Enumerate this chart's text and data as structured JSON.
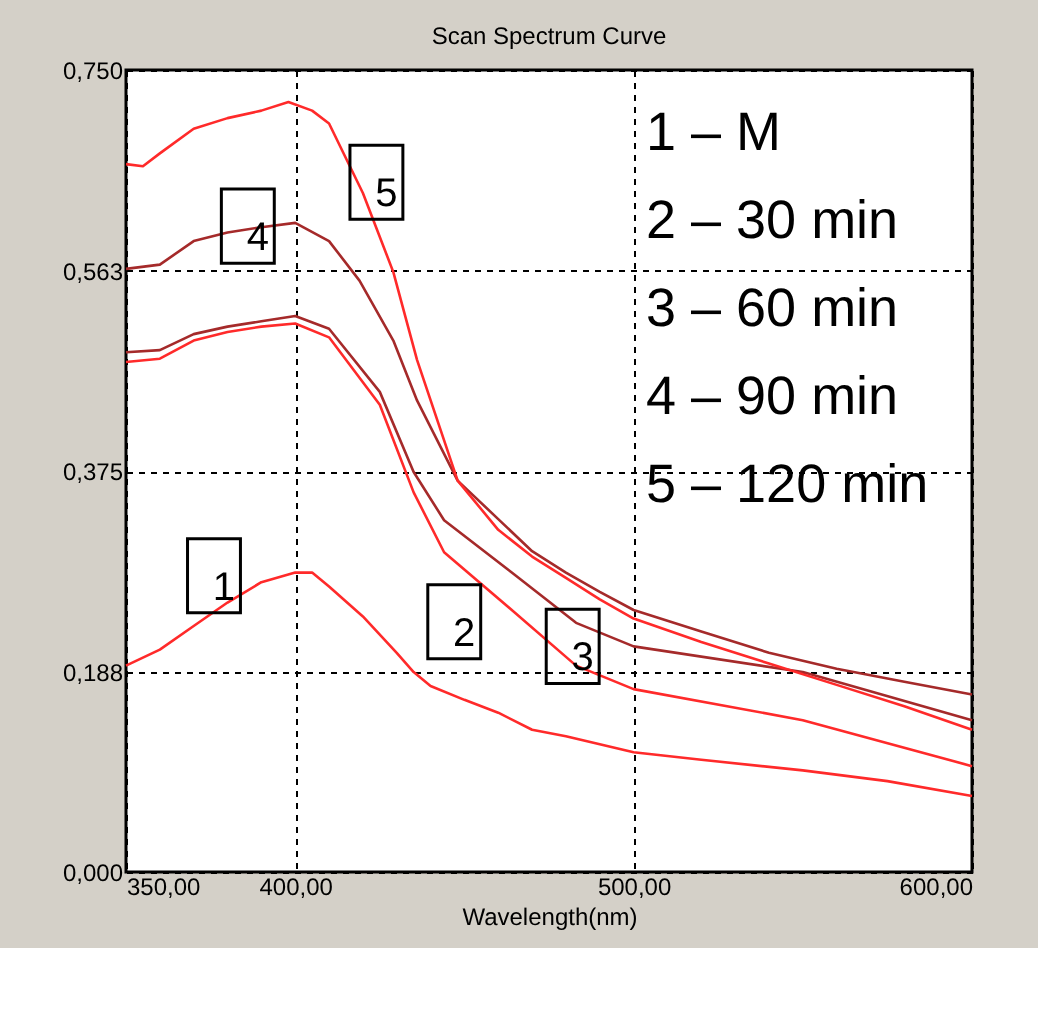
{
  "chart_data": {
    "type": "line",
    "title": "Scan Spectrum Curve",
    "xlabel": "Wavelength(nm)",
    "xlim": [
      350,
      600
    ],
    "xticks": [
      {
        "value": 350,
        "label": "350,00"
      },
      {
        "value": 400,
        "label": "400,00"
      },
      {
        "value": 500,
        "label": "500,00"
      },
      {
        "value": 600,
        "label": "600,00"
      }
    ],
    "ylim": [
      0,
      0.75
    ],
    "yticks": [
      {
        "value": 0,
        "label": "0,000"
      },
      {
        "value": 0.1875,
        "label": "0,188"
      },
      {
        "value": 0.375,
        "label": "0,375"
      },
      {
        "value": 0.5625,
        "label": "0,563"
      },
      {
        "value": 0.75,
        "label": "0,750"
      }
    ],
    "grid": true,
    "legend": false,
    "marker": "none",
    "line_style": "solid",
    "series": [
      {
        "color": "#ff2a2a",
        "x": [
          350,
          360,
          370,
          380,
          390,
          400,
          405,
          410,
          420,
          430,
          435,
          440,
          450,
          460,
          470,
          480,
          500,
          520,
          550,
          575,
          600
        ],
        "values": [
          0.193,
          0.208,
          0.23,
          0.252,
          0.271,
          0.28,
          0.28,
          0.267,
          0.239,
          0.205,
          0.187,
          0.174,
          0.161,
          0.149,
          0.133,
          0.127,
          0.112,
          0.105,
          0.095,
          0.085,
          0.071
        ]
      },
      {
        "color": "#ff2a2a",
        "x": [
          350,
          360,
          370,
          380,
          390,
          400,
          410,
          425,
          435,
          444,
          464,
          483,
          500,
          550,
          600
        ],
        "values": [
          0.477,
          0.48,
          0.497,
          0.505,
          0.51,
          0.513,
          0.5,
          0.437,
          0.355,
          0.299,
          0.245,
          0.193,
          0.171,
          0.142,
          0.099
        ]
      },
      {
        "color": "#a52a2a",
        "x": [
          350,
          360,
          370,
          380,
          390,
          400,
          410,
          425,
          435,
          444,
          464,
          483,
          500,
          550,
          600
        ],
        "values": [
          0.486,
          0.488,
          0.503,
          0.51,
          0.515,
          0.52,
          0.508,
          0.449,
          0.374,
          0.329,
          0.28,
          0.233,
          0.211,
          0.187,
          0.142
        ]
      },
      {
        "color": "#a52a2a",
        "x": [
          350,
          360,
          370,
          380,
          390,
          400,
          410,
          419,
          429,
          436,
          448,
          460,
          470,
          480,
          490,
          500,
          520,
          540,
          560,
          580,
          600
        ],
        "values": [
          0.564,
          0.568,
          0.59,
          0.598,
          0.603,
          0.607,
          0.59,
          0.553,
          0.497,
          0.441,
          0.366,
          0.33,
          0.3,
          0.28,
          0.262,
          0.245,
          0.225,
          0.205,
          0.19,
          0.178,
          0.166
        ]
      },
      {
        "color": "#ff2a2a",
        "x": [
          350,
          355,
          360,
          370,
          380,
          390,
          398,
          405,
          410,
          420,
          429,
          436,
          448,
          460,
          470,
          480,
          490,
          500,
          520,
          540,
          560,
          580,
          600
        ],
        "values": [
          0.662,
          0.66,
          0.672,
          0.695,
          0.705,
          0.712,
          0.72,
          0.712,
          0.7,
          0.635,
          0.561,
          0.479,
          0.366,
          0.32,
          0.295,
          0.275,
          0.255,
          0.237,
          0.215,
          0.195,
          0.175,
          0.155,
          0.133
        ]
      }
    ],
    "annotations": [
      "1 – M",
      "2 – 30 min",
      "3 – 60 min",
      "4 – 90 min",
      "5 – 120 min",
      {
        "text": "1",
        "x": 376,
        "y": 0.277
      },
      {
        "text": "2",
        "x": 447,
        "y": 0.234
      },
      {
        "text": "3",
        "x": 482,
        "y": 0.211
      },
      {
        "text": "4",
        "x": 386,
        "y": 0.604
      },
      {
        "text": "5",
        "x": 424,
        "y": 0.645
      }
    ]
  }
}
